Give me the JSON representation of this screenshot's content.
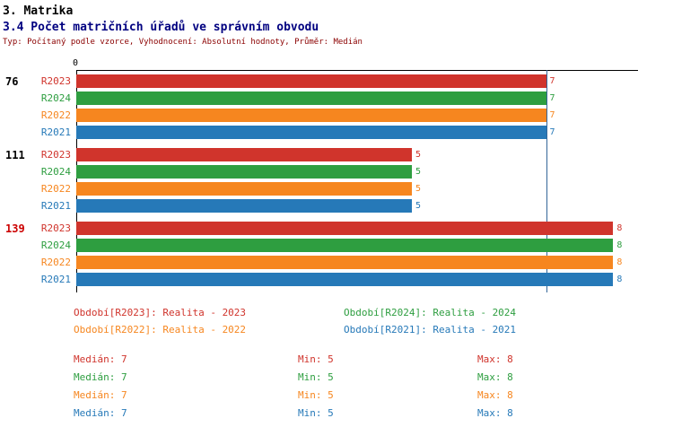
{
  "header": {
    "title1": "3. Matrika",
    "title2": "3.4 Počet matričních úřadů ve správním obvodu",
    "subtitle": "Typ: Počítaný podle vzorce, Vyhodnocení: Absolutní hodnoty, Průměr: Medián"
  },
  "colors": {
    "section_title": "#000000",
    "chart_title": "#000080",
    "subtitle": "#8b0000",
    "axis_line": "#000000",
    "median_line": "#336699",
    "group_highlight": "#cc0000"
  },
  "chart_data": {
    "type": "bar",
    "orientation": "horizontal",
    "title": "3.4 Počet matričních úřadů ve správním obvodu",
    "axis": {
      "origin_label": "0",
      "xmin": 0,
      "xmax": 8.37,
      "median_line_value": 7,
      "median_line_color": "#336699"
    },
    "series_colors": {
      "R2023": "#d0342c",
      "R2024": "#2e9e40",
      "R2022": "#f6861f",
      "R2021": "#2679b8"
    },
    "groups": [
      {
        "label": "76",
        "label_color": "#000000",
        "bars": [
          {
            "series": "R2023",
            "value": 7
          },
          {
            "series": "R2024",
            "value": 7
          },
          {
            "series": "R2022",
            "value": 7
          },
          {
            "series": "R2021",
            "value": 7
          }
        ]
      },
      {
        "label": "111",
        "label_color": "#000000",
        "bars": [
          {
            "series": "R2023",
            "value": 5
          },
          {
            "series": "R2024",
            "value": 5
          },
          {
            "series": "R2022",
            "value": 5
          },
          {
            "series": "R2021",
            "value": 5
          }
        ]
      },
      {
        "label": "139",
        "label_color": "#cc0000",
        "bars": [
          {
            "series": "R2023",
            "value": 8
          },
          {
            "series": "R2024",
            "value": 8
          },
          {
            "series": "R2022",
            "value": 8
          },
          {
            "series": "R2021",
            "value": 8
          }
        ]
      }
    ],
    "legend": [
      {
        "series": "R2023",
        "label": "Období[R2023]: Realita - 2023"
      },
      {
        "series": "R2024",
        "label": "Období[R2024]: Realita - 2024"
      },
      {
        "series": "R2022",
        "label": "Období[R2022]: Realita - 2022"
      },
      {
        "series": "R2021",
        "label": "Období[R2021]: Realita - 2021"
      }
    ],
    "stats": [
      {
        "series": "R2023",
        "median": "Medián: 7",
        "min": "Min: 5",
        "max": "Max: 8"
      },
      {
        "series": "R2024",
        "median": "Medián: 7",
        "min": "Min: 5",
        "max": "Max: 8"
      },
      {
        "series": "R2022",
        "median": "Medián: 7",
        "min": "Min: 5",
        "max": "Max: 8"
      },
      {
        "series": "R2021",
        "median": "Medián: 7",
        "min": "Min: 5",
        "max": "Max: 8"
      }
    ]
  }
}
